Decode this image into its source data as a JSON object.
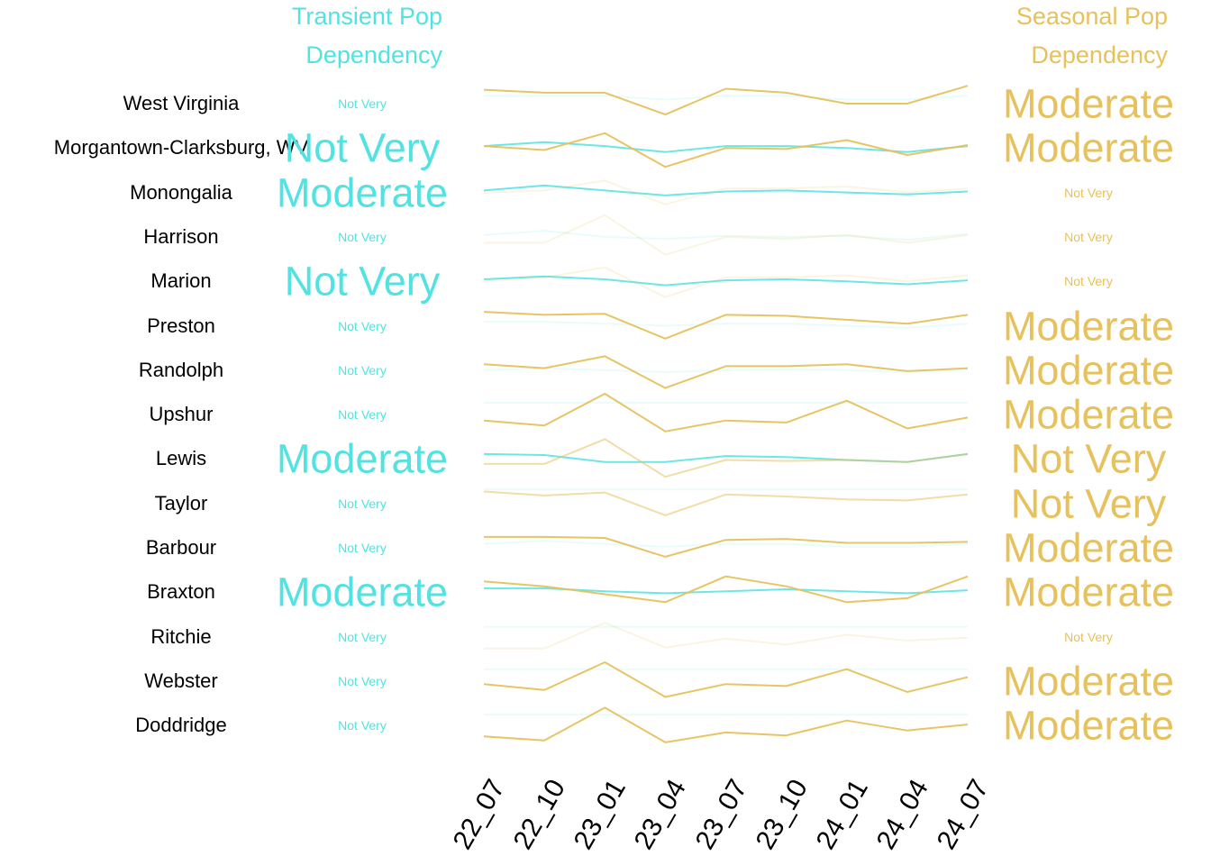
{
  "colors": {
    "transient": "#52e2e2",
    "seasonal": "#e6c15c",
    "text": "#000000",
    "background": "#ffffff"
  },
  "headers": {
    "transient": [
      "Transient Pop",
      "Dependency"
    ],
    "seasonal": [
      "Seasonal Pop",
      "Dependency"
    ]
  },
  "chart_data": {
    "type": "line",
    "x": [
      "22_07",
      "22_10",
      "23_01",
      "23_04",
      "23_07",
      "23_10",
      "24_01",
      "24_04",
      "24_07"
    ],
    "rows": [
      {
        "label": "West Virginia",
        "transient_level": "Not Very",
        "seasonal_level": "Moderate",
        "transient": [
          0.4,
          0.4,
          0.4,
          0.2,
          0.4,
          0.4,
          0.2,
          0.2,
          0.4
        ],
        "seasonal": [
          0.7,
          0.55,
          0.55,
          -0.55,
          0.75,
          0.55,
          0.0,
          0.0,
          0.9
        ]
      },
      {
        "label": "Morgantown-Clarksburg, WV",
        "transient_level": "Not Very",
        "seasonal_level": "Moderate",
        "transient": [
          0.1,
          0.3,
          0.1,
          -0.2,
          0.1,
          0.1,
          0.0,
          -0.2,
          0.1
        ],
        "seasonal": [
          0.1,
          -0.1,
          0.75,
          -0.95,
          0.0,
          -0.05,
          0.4,
          -0.35,
          0.15
        ]
      },
      {
        "label": "Monongalia",
        "transient_level": "Moderate",
        "seasonal_level": "Not Very",
        "transient": [
          0.1,
          0.35,
          0.1,
          -0.15,
          0.05,
          0.1,
          0.0,
          -0.1,
          0.05
        ],
        "seasonal": [
          0.0,
          0.1,
          0.6,
          -0.6,
          0.2,
          0.2,
          0.3,
          0.0,
          0.2
        ]
      },
      {
        "label": "Harrison",
        "transient_level": "Not Very",
        "seasonal_level": "Not Very",
        "transient": [
          0.1,
          0.3,
          0.0,
          -0.1,
          0.05,
          0.0,
          0.05,
          -0.15,
          0.15
        ],
        "seasonal": [
          -0.3,
          -0.3,
          1.1,
          -0.9,
          0.0,
          -0.1,
          0.1,
          -0.3,
          0.1
        ]
      },
      {
        "label": "Marion",
        "transient_level": "Not Very",
        "seasonal_level": "Not Very",
        "transient": [
          0.1,
          0.25,
          0.1,
          -0.2,
          0.05,
          0.1,
          0.0,
          -0.15,
          0.05
        ],
        "seasonal": [
          0.0,
          0.2,
          0.7,
          -0.8,
          0.2,
          0.2,
          0.3,
          0.0,
          0.3
        ]
      },
      {
        "label": "Preston",
        "transient_level": "Not Very",
        "seasonal_level": "Moderate",
        "transient": [
          0.2,
          0.2,
          0.1,
          0.0,
          0.1,
          0.1,
          0.0,
          -0.1,
          0.1
        ],
        "seasonal": [
          0.7,
          0.55,
          0.6,
          -0.65,
          0.55,
          0.5,
          0.3,
          0.1,
          0.55
        ]
      },
      {
        "label": "Randolph",
        "transient_level": "Not Very",
        "seasonal_level": "Moderate",
        "transient": [
          0.0,
          0.1,
          0.0,
          -0.1,
          0.0,
          0.05,
          0.0,
          -0.1,
          0.0
        ],
        "seasonal": [
          0.3,
          0.1,
          0.7,
          -0.9,
          0.2,
          0.2,
          0.3,
          -0.05,
          0.1
        ]
      },
      {
        "label": "Upshur",
        "transient_level": "Not Very",
        "seasonal_level": "Moderate",
        "transient": [
          0.6,
          0.6,
          0.6,
          0.6,
          0.6,
          0.6,
          0.6,
          0.6,
          0.6
        ],
        "seasonal": [
          -0.3,
          -0.55,
          1.05,
          -0.85,
          -0.3,
          -0.4,
          0.7,
          -0.7,
          -0.15
        ]
      },
      {
        "label": "Lewis",
        "transient_level": "Moderate",
        "seasonal_level": "Not Very",
        "transient": [
          0.25,
          0.2,
          -0.15,
          -0.15,
          0.15,
          0.1,
          -0.05,
          -0.15,
          0.25
        ],
        "seasonal": [
          -0.25,
          -0.25,
          1.0,
          -0.9,
          -0.05,
          -0.1,
          -0.05,
          -0.15,
          0.25
        ]
      },
      {
        "label": "Taylor",
        "transient_level": "Not Very",
        "seasonal_level": "Not Very",
        "transient": [
          0.7,
          0.7,
          0.7,
          0.7,
          0.7,
          0.7,
          0.7,
          0.7,
          0.7
        ],
        "seasonal": [
          0.6,
          0.4,
          0.55,
          -0.6,
          0.45,
          0.35,
          0.2,
          0.15,
          0.45
        ]
      },
      {
        "label": "Barbour",
        "transient_level": "Not Very",
        "seasonal_level": "Moderate",
        "transient": [
          0.2,
          0.35,
          0.2,
          0.05,
          0.2,
          0.2,
          0.05,
          0.05,
          0.2
        ],
        "seasonal": [
          0.55,
          0.55,
          0.5,
          -0.45,
          0.4,
          0.45,
          0.25,
          0.25,
          0.3
        ]
      },
      {
        "label": "Braxton",
        "transient_level": "Moderate",
        "seasonal_level": "Moderate",
        "transient": [
          0.2,
          0.2,
          0.05,
          -0.05,
          0.05,
          0.15,
          0.05,
          -0.05,
          0.1
        ],
        "seasonal": [
          0.55,
          0.3,
          -0.1,
          -0.5,
          0.8,
          0.3,
          -0.5,
          -0.3,
          0.8
        ]
      },
      {
        "label": "Ritchie",
        "transient_level": "Not Very",
        "seasonal_level": "Not Very",
        "transient": [
          0.5,
          0.5,
          0.5,
          0.5,
          0.5,
          0.5,
          0.5,
          0.5,
          0.5
        ],
        "seasonal": [
          -0.6,
          -0.6,
          0.7,
          -0.55,
          -0.1,
          -0.4,
          0.1,
          -0.2,
          -0.05
        ]
      },
      {
        "label": "Webster",
        "transient_level": "Not Very",
        "seasonal_level": "Moderate",
        "transient": [
          0.6,
          0.6,
          0.6,
          0.6,
          0.6,
          0.6,
          0.6,
          0.6,
          0.6
        ],
        "seasonal": [
          -0.15,
          -0.45,
          0.95,
          -0.8,
          -0.15,
          -0.25,
          0.6,
          -0.55,
          0.2
        ]
      },
      {
        "label": "Doddridge",
        "transient_level": "Not Very",
        "seasonal_level": "Moderate",
        "transient": [
          0.55,
          0.55,
          0.55,
          0.55,
          0.55,
          0.55,
          0.55,
          0.55,
          0.55
        ],
        "seasonal": [
          -0.55,
          -0.75,
          0.9,
          -0.85,
          -0.35,
          -0.5,
          0.25,
          -0.25,
          0.05
        ]
      }
    ]
  }
}
